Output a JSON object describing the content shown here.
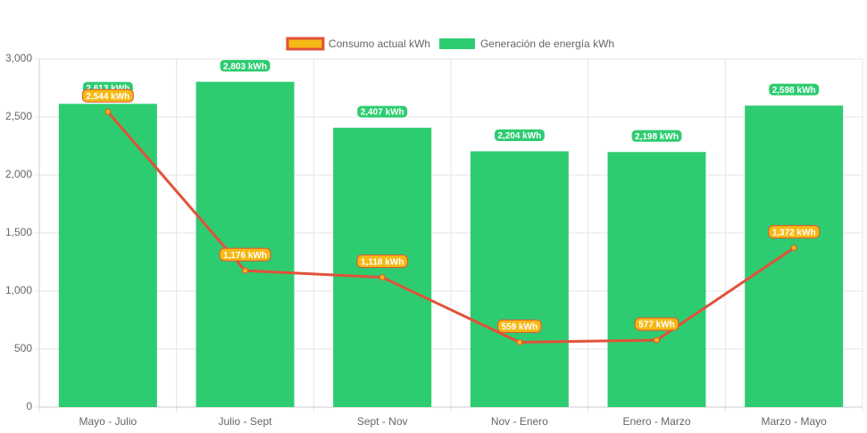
{
  "chart_data": {
    "type": "bar",
    "categories": [
      "Mayo - Julio",
      "Julio - Sept",
      "Sept - Nov",
      "Nov - Enero",
      "Enero - Marzo",
      "Marzo - Mayo"
    ],
    "series": [
      {
        "name": "Consumo actual kWh",
        "type": "line",
        "color": "#e0523a",
        "point_color": "#f5b914",
        "values": [
          2544,
          1176,
          1118,
          559,
          577,
          1372
        ],
        "value_labels": [
          "2,544 kWh",
          "1,176 kWh",
          "1,118 kWh",
          "559 kWh",
          "577 kWh",
          "1,372 kWh"
        ]
      },
      {
        "name": "Generación de energía kWh",
        "type": "bar",
        "color": "#2ecc71",
        "values": [
          2613,
          2803,
          2407,
          2204,
          2198,
          2598
        ],
        "value_labels": [
          "2,613 kWh",
          "2,803 kWh",
          "2,407 kWh",
          "2,204 kWh",
          "2,198 kWh",
          "2,598 kWh"
        ]
      }
    ],
    "ylim": [
      0,
      3000
    ],
    "yticks": [
      0,
      500,
      {
        "value": 1000,
        "label": "1,000"
      },
      {
        "value": 1500,
        "label": "1,500"
      },
      {
        "value": 2000,
        "label": "2,000"
      },
      {
        "value": 2500,
        "label": "2,500"
      },
      {
        "value": 3000,
        "label": "3,000"
      }
    ],
    "grid": true,
    "legend": "top"
  }
}
